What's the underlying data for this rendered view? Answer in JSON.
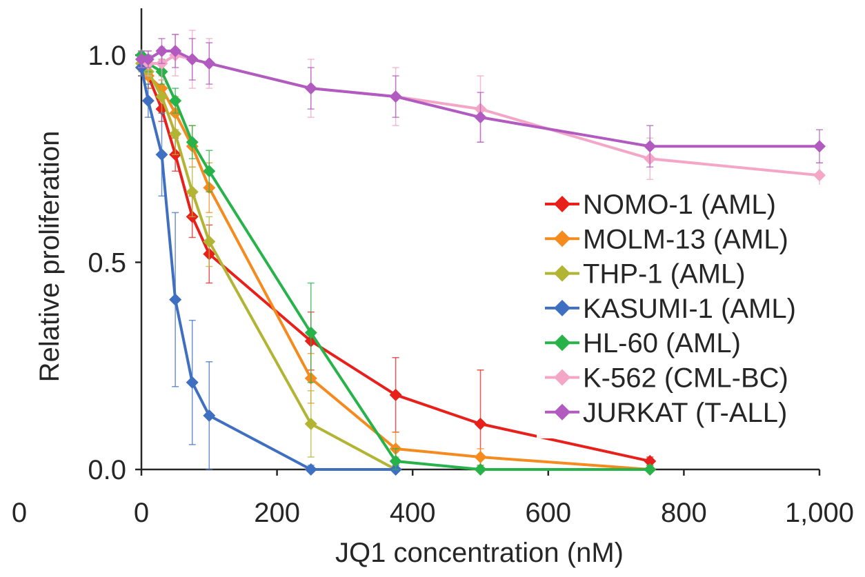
{
  "chart_data": {
    "type": "line",
    "xlabel": "JQ1 concentration (nM)",
    "ylabel": "Relative proliferation",
    "xlim": [
      0,
      1000
    ],
    "ylim": [
      0,
      1.0
    ],
    "x_ticks": [
      0,
      200,
      400,
      600,
      800,
      1000
    ],
    "x_tick_labels": [
      "0",
      "200",
      "400",
      "600",
      "800",
      "1,000"
    ],
    "stray_left_label": "0",
    "y_ticks": [
      0,
      0.5,
      1.0
    ],
    "y_tick_labels": [
      "0.0",
      "0.5",
      "1.0"
    ],
    "grid": false,
    "legend_position": "right",
    "series": [
      {
        "name": "NOMO-1 (AML)",
        "color": "#e8201c",
        "x": [
          0,
          10,
          30,
          50,
          75,
          100,
          250,
          375,
          500,
          750
        ],
        "y": [
          0.97,
          0.95,
          0.87,
          0.76,
          0.61,
          0.52,
          0.31,
          0.18,
          0.11,
          0.02
        ],
        "err": [
          0.02,
          0.03,
          0.03,
          0.04,
          0.05,
          0.07,
          0.07,
          0.09,
          0.13,
          0.01
        ]
      },
      {
        "name": "MOLM-13 (AML)",
        "color": "#f58a1f",
        "x": [
          0,
          10,
          30,
          50,
          75,
          100,
          250,
          375,
          500,
          750
        ],
        "y": [
          0.97,
          0.95,
          0.92,
          0.86,
          0.78,
          0.68,
          0.22,
          0.05,
          0.03,
          0.0
        ],
        "err": [
          0.02,
          0.03,
          0.03,
          0.04,
          0.05,
          0.06,
          0.06,
          0.04,
          0.02,
          0.01
        ]
      },
      {
        "name": "THP-1 (AML)",
        "color": "#b2b434",
        "x": [
          0,
          10,
          30,
          50,
          75,
          100,
          250,
          375
        ],
        "y": [
          0.98,
          0.96,
          0.9,
          0.81,
          0.67,
          0.55,
          0.11,
          0.0
        ],
        "err": [
          0.02,
          0.03,
          0.04,
          0.05,
          0.06,
          0.06,
          0.08,
          0.03
        ]
      },
      {
        "name": "KASUMI-1 (AML)",
        "color": "#3f6fc1",
        "x": [
          0,
          10,
          30,
          50,
          75,
          100,
          250,
          375
        ],
        "y": [
          0.97,
          0.89,
          0.76,
          0.41,
          0.21,
          0.13,
          0.0,
          0.0
        ],
        "err": [
          0.02,
          0.04,
          0.1,
          0.21,
          0.15,
          0.13,
          0.01,
          0.01
        ]
      },
      {
        "name": "HL-60 (AML)",
        "color": "#28b34a",
        "x": [
          0,
          10,
          30,
          50,
          75,
          100,
          250,
          375,
          500,
          750
        ],
        "y": [
          1.0,
          0.98,
          0.96,
          0.89,
          0.79,
          0.72,
          0.33,
          0.02,
          0.0,
          0.0
        ],
        "err": [
          0.01,
          0.02,
          0.03,
          0.03,
          0.04,
          0.05,
          0.12,
          0.03,
          0.01,
          0.01
        ]
      },
      {
        "name": "K-562 (CML-BC)",
        "color": "#f4a6c6",
        "x": [
          0,
          10,
          30,
          50,
          75,
          100,
          250,
          375,
          500,
          750,
          1000
        ],
        "y": [
          0.99,
          0.98,
          0.98,
          1.0,
          0.99,
          0.98,
          0.92,
          0.9,
          0.87,
          0.75,
          0.71
        ],
        "err": [
          0.02,
          0.03,
          0.04,
          0.05,
          0.07,
          0.06,
          0.07,
          0.07,
          0.08,
          0.05,
          0.03
        ]
      },
      {
        "name": "JURKAT (T-ALL)",
        "color": "#b15bc0",
        "x": [
          0,
          10,
          30,
          50,
          75,
          100,
          250,
          375,
          500,
          750,
          1000
        ],
        "y": [
          0.99,
          0.99,
          1.01,
          1.01,
          0.99,
          0.98,
          0.92,
          0.9,
          0.85,
          0.78,
          0.78
        ],
        "err": [
          0.02,
          0.02,
          0.03,
          0.04,
          0.05,
          0.05,
          0.05,
          0.05,
          0.06,
          0.05,
          0.04
        ]
      }
    ]
  }
}
